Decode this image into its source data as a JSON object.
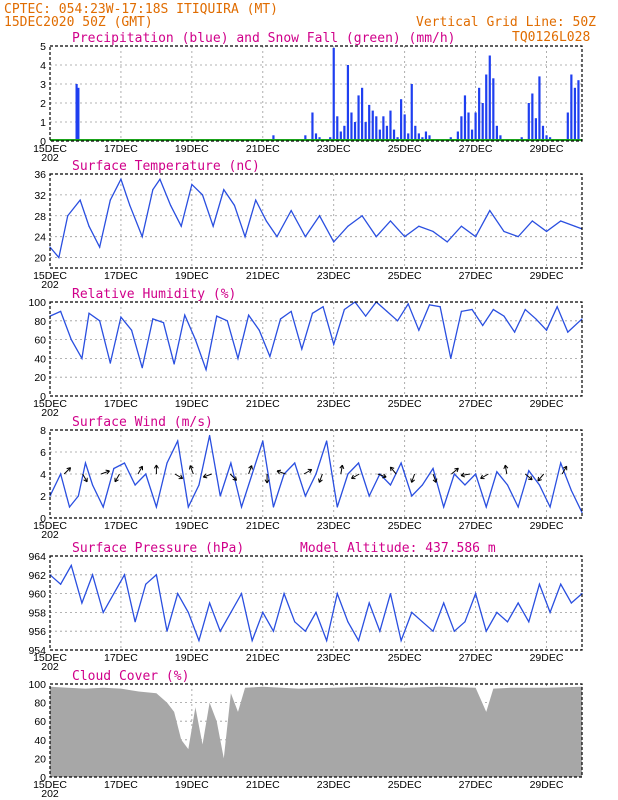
{
  "header": {
    "line1": "CPTEC:   054:23W-17:18S   ITIQUIRA (MT)",
    "line2": "15DEC2020 50Z (GMT)",
    "grid_note": "Vertical Grid Line: 50Z",
    "code": "TQ0126L028"
  },
  "day_labels": [
    "15DEC",
    "17DEC",
    "19DEC",
    "21DEC",
    "23DEC",
    "25DEC",
    "27DEC",
    "29DEC"
  ],
  "year_fragment": "202",
  "chart_data": [
    {
      "type": "bar",
      "title": "Precipitation (blue) and Snow Fall (green) (mm/h)",
      "ylim": [
        0,
        5
      ],
      "yticks": [
        0,
        1,
        2,
        3,
        4,
        5
      ],
      "x_unit": "day offset from 15DEC",
      "bars_x": [
        0.75,
        0.8,
        1.0,
        3.0,
        5.3,
        6.0,
        6.3,
        7.2,
        7.4,
        7.5,
        7.6,
        7.7,
        7.9,
        8.0,
        8.1,
        8.2,
        8.3,
        8.4,
        8.5,
        8.6,
        8.7,
        8.8,
        8.9,
        9.0,
        9.1,
        9.2,
        9.3,
        9.4,
        9.5,
        9.6,
        9.7,
        9.8,
        9.9,
        10.0,
        10.1,
        10.2,
        10.3,
        10.4,
        10.5,
        10.6,
        10.7,
        11.3,
        11.5,
        11.6,
        11.7,
        11.8,
        11.9,
        12.0,
        12.1,
        12.2,
        12.3,
        12.4,
        12.5,
        12.6,
        12.7,
        13.3,
        13.5,
        13.6,
        13.7,
        13.8,
        13.9,
        14.0,
        14.1,
        14.6,
        14.7,
        14.8,
        14.9
      ],
      "bars_y": [
        3.0,
        2.8,
        0.1,
        0.05,
        0.1,
        0.05,
        0.3,
        0.3,
        1.5,
        0.4,
        0.2,
        0.1,
        0.2,
        4.9,
        1.3,
        0.5,
        0.8,
        4.0,
        1.5,
        1.0,
        2.4,
        2.8,
        1.0,
        1.9,
        1.6,
        1.3,
        0.6,
        1.3,
        0.8,
        1.6,
        0.6,
        0.2,
        2.2,
        1.4,
        0.4,
        3.0,
        0.8,
        0.4,
        0.2,
        0.5,
        0.3,
        0.2,
        0.5,
        1.3,
        2.4,
        1.5,
        0.6,
        1.5,
        2.8,
        2.0,
        3.5,
        4.5,
        3.3,
        0.8,
        0.3,
        0.2,
        2.0,
        2.5,
        1.2,
        3.4,
        0.8,
        0.3,
        0.2,
        1.5,
        3.5,
        2.8,
        3.2
      ],
      "snow": 0
    },
    {
      "type": "line",
      "title": "Surface Temperature (nC)",
      "ylim": [
        18,
        36
      ],
      "yticks": [
        20,
        24,
        28,
        32,
        36
      ],
      "x": [
        0,
        0.25,
        0.5,
        0.85,
        1.1,
        1.4,
        1.7,
        2.0,
        2.25,
        2.6,
        2.9,
        3.1,
        3.4,
        3.7,
        4.0,
        4.3,
        4.6,
        4.9,
        5.2,
        5.5,
        5.8,
        6.1,
        6.4,
        6.8,
        7.2,
        7.6,
        8.0,
        8.4,
        8.8,
        9.2,
        9.6,
        10.0,
        10.4,
        10.8,
        11.2,
        11.6,
        12.0,
        12.4,
        12.8,
        13.2,
        13.6,
        14.0,
        14.4,
        14.8,
        15.0
      ],
      "y": [
        22,
        20,
        28,
        31,
        26,
        22,
        31,
        35,
        30,
        24,
        33,
        35,
        30,
        26,
        34,
        32,
        26,
        33,
        30,
        24,
        31,
        27,
        24,
        29,
        24,
        28,
        23,
        26,
        28,
        24,
        27,
        24,
        26,
        25,
        23,
        26,
        24,
        29,
        25,
        24,
        27,
        25,
        27,
        26,
        25.5
      ]
    },
    {
      "type": "line",
      "title": "Relative Humidity (%)",
      "ylim": [
        0,
        100
      ],
      "yticks": [
        0,
        20,
        40,
        60,
        80,
        100
      ],
      "x": [
        0,
        0.3,
        0.6,
        0.9,
        1.1,
        1.4,
        1.7,
        2.0,
        2.3,
        2.6,
        2.9,
        3.2,
        3.5,
        3.8,
        4.1,
        4.4,
        4.7,
        5.0,
        5.3,
        5.6,
        5.9,
        6.2,
        6.5,
        6.8,
        7.1,
        7.4,
        7.7,
        8.0,
        8.3,
        8.6,
        8.9,
        9.2,
        9.5,
        9.8,
        10.1,
        10.4,
        10.7,
        11.0,
        11.3,
        11.6,
        11.9,
        12.2,
        12.5,
        12.8,
        13.1,
        13.4,
        13.7,
        14.0,
        14.3,
        14.6,
        15.0
      ],
      "y": [
        85,
        90,
        60,
        40,
        88,
        80,
        35,
        84,
        70,
        30,
        82,
        78,
        34,
        86,
        60,
        28,
        85,
        80,
        40,
        86,
        70,
        42,
        82,
        90,
        50,
        88,
        95,
        55,
        92,
        100,
        85,
        100,
        90,
        80,
        98,
        70,
        97,
        95,
        40,
        90,
        92,
        75,
        92,
        85,
        68,
        92,
        82,
        70,
        95,
        68,
        82
      ]
    },
    {
      "type": "line",
      "title": "Surface Wind (m/s)",
      "ylim": [
        0,
        8
      ],
      "yticks": [
        0,
        2,
        4,
        6,
        8
      ],
      "x": [
        0,
        0.3,
        0.55,
        0.8,
        1.0,
        1.2,
        1.5,
        1.8,
        2.1,
        2.4,
        2.7,
        3.0,
        3.3,
        3.6,
        3.9,
        4.2,
        4.5,
        4.8,
        5.1,
        5.4,
        5.7,
        6.0,
        6.3,
        6.6,
        6.9,
        7.2,
        7.5,
        7.8,
        8.1,
        8.4,
        8.7,
        9.0,
        9.3,
        9.6,
        9.9,
        10.2,
        10.5,
        10.8,
        11.1,
        11.4,
        11.7,
        12.0,
        12.3,
        12.6,
        12.9,
        13.2,
        13.5,
        13.8,
        14.1,
        14.4,
        14.7,
        15.0
      ],
      "y": [
        2,
        4,
        1,
        2,
        5,
        3,
        1,
        4.5,
        5,
        3,
        4,
        1,
        5,
        7,
        1,
        3,
        7.5,
        2,
        5,
        1,
        4,
        7,
        1,
        4,
        5,
        2,
        4,
        7,
        1,
        4,
        5,
        2,
        4,
        3,
        5,
        2,
        3,
        4.5,
        1,
        4,
        3,
        4,
        1,
        4.2,
        3,
        1,
        4.3,
        3,
        1,
        5,
        2.5,
        0.5
      ]
    },
    {
      "type": "line",
      "title": "Surface Pressure (hPa)",
      "annotation": "Model Altitude: 437.586  m",
      "ylim": [
        954,
        964
      ],
      "yticks": [
        954,
        956,
        958,
        960,
        962,
        964
      ],
      "x": [
        0,
        0.3,
        0.6,
        0.9,
        1.2,
        1.5,
        1.8,
        2.1,
        2.4,
        2.7,
        3.0,
        3.3,
        3.6,
        3.9,
        4.2,
        4.5,
        4.8,
        5.1,
        5.4,
        5.7,
        6.0,
        6.3,
        6.6,
        6.9,
        7.2,
        7.5,
        7.8,
        8.1,
        8.4,
        8.7,
        9.0,
        9.3,
        9.6,
        9.9,
        10.2,
        10.5,
        10.8,
        11.1,
        11.4,
        11.7,
        12.0,
        12.3,
        12.6,
        12.9,
        13.2,
        13.5,
        13.8,
        14.1,
        14.4,
        14.7,
        15.0
      ],
      "y": [
        962,
        961,
        963,
        959,
        962,
        958,
        960,
        962,
        957,
        961,
        962,
        956,
        960,
        958,
        955,
        959,
        956,
        958,
        960,
        955,
        958,
        956,
        960,
        957,
        956,
        958,
        955,
        960,
        957,
        955,
        959,
        956,
        960,
        955,
        958,
        957,
        956,
        959,
        956,
        957,
        960,
        956,
        958,
        957,
        959,
        957,
        961,
        958,
        961,
        959,
        960
      ]
    },
    {
      "type": "area",
      "title": "Cloud Cover (%)",
      "ylim": [
        0,
        100
      ],
      "yticks": [
        0,
        20,
        40,
        60,
        80,
        100
      ],
      "x": [
        0,
        0.5,
        1.0,
        1.5,
        2.0,
        2.5,
        3.0,
        3.3,
        3.5,
        3.7,
        3.9,
        4.1,
        4.3,
        4.5,
        4.7,
        4.9,
        5.1,
        5.3,
        5.5,
        6.0,
        7.0,
        8.0,
        9.0,
        10.0,
        11.0,
        12.0,
        12.3,
        12.5,
        13.0,
        14.0,
        15.0
      ],
      "y": [
        97,
        96,
        95,
        96,
        95,
        92,
        90,
        80,
        70,
        40,
        30,
        75,
        35,
        80,
        60,
        20,
        90,
        70,
        96,
        97,
        95,
        96,
        97,
        96,
        97,
        96,
        70,
        95,
        96,
        96,
        97
      ]
    }
  ]
}
